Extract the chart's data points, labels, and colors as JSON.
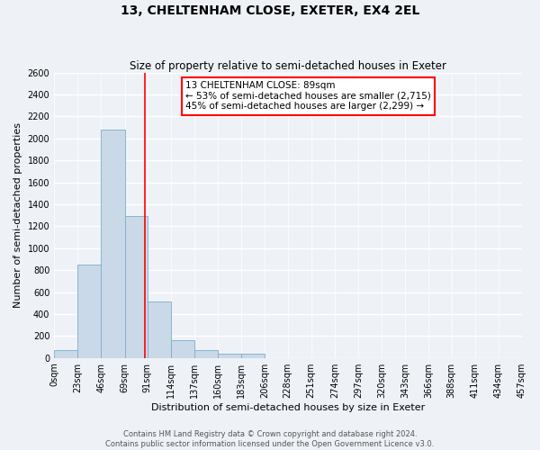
{
  "title": "13, CHELTENHAM CLOSE, EXETER, EX4 2EL",
  "subtitle": "Size of property relative to semi-detached houses in Exeter",
  "xlabel": "Distribution of semi-detached houses by size in Exeter",
  "ylabel": "Number of semi-detached properties",
  "bin_labels": [
    "0sqm",
    "23sqm",
    "46sqm",
    "69sqm",
    "91sqm",
    "114sqm",
    "137sqm",
    "160sqm",
    "183sqm",
    "206sqm",
    "228sqm",
    "251sqm",
    "274sqm",
    "297sqm",
    "320sqm",
    "343sqm",
    "366sqm",
    "388sqm",
    "411sqm",
    "434sqm",
    "457sqm"
  ],
  "bin_edges": [
    0,
    23,
    46,
    69,
    91,
    114,
    137,
    160,
    183,
    206,
    228,
    251,
    274,
    297,
    320,
    343,
    366,
    388,
    411,
    434,
    457
  ],
  "bar_heights": [
    70,
    850,
    2080,
    1290,
    515,
    160,
    70,
    40,
    35,
    0,
    0,
    0,
    0,
    0,
    0,
    0,
    0,
    0,
    0,
    0
  ],
  "bar_color": "#c9d9e8",
  "bar_edge_color": "#7baec8",
  "property_size": 89,
  "vline_color": "red",
  "annotation_title": "13 CHELTENHAM CLOSE: 89sqm",
  "annotation_line1": "← 53% of semi-detached houses are smaller (2,715)",
  "annotation_line2": "45% of semi-detached houses are larger (2,299) →",
  "annotation_box_color": "#ffffff",
  "annotation_box_edge": "red",
  "ylim": [
    0,
    2600
  ],
  "yticks": [
    0,
    200,
    400,
    600,
    800,
    1000,
    1200,
    1400,
    1600,
    1800,
    2000,
    2200,
    2400,
    2600
  ],
  "footer1": "Contains HM Land Registry data © Crown copyright and database right 2024.",
  "footer2": "Contains public sector information licensed under the Open Government Licence v3.0.",
  "bg_color": "#eef2f7",
  "grid_color": "#ffffff",
  "title_fontsize": 10,
  "subtitle_fontsize": 8.5,
  "axis_label_fontsize": 8,
  "tick_fontsize": 7,
  "annotation_fontsize": 7.5,
  "footer_fontsize": 6.0
}
